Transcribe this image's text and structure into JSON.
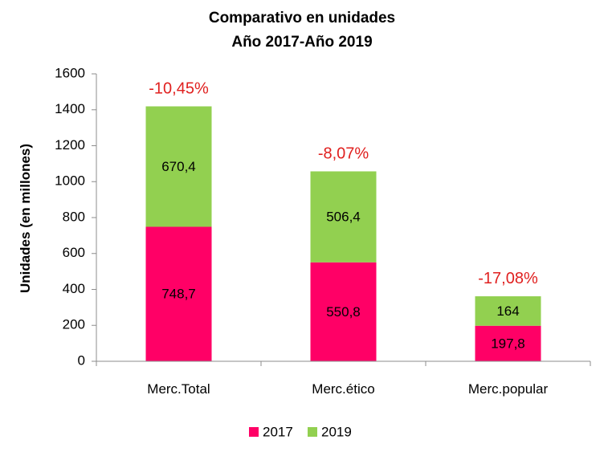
{
  "chart_data": {
    "type": "bar",
    "stacked": true,
    "title": [
      "Comparativo en unidades",
      "Año 2017-Año 2019"
    ],
    "xlabel": "",
    "ylabel": "Unidades (en millones)",
    "ylim": [
      0,
      1600
    ],
    "yticks": [
      0,
      200,
      400,
      600,
      800,
      1000,
      1200,
      1400,
      1600
    ],
    "grid": false,
    "legend_position": "bottom",
    "categories": [
      "Merc.Total",
      "Merc.ético",
      "Merc.popular"
    ],
    "series": [
      {
        "name": "2017",
        "color": "#ff0066",
        "values": [
          748.7,
          550.8,
          197.8
        ],
        "labels": [
          "748,7",
          "550,8",
          "197,8"
        ]
      },
      {
        "name": "2019",
        "color": "#92d050",
        "values": [
          670.4,
          506.4,
          164
        ],
        "labels": [
          "670,4",
          "506,4",
          "164"
        ]
      }
    ],
    "annotations": [
      "-10,45%",
      "-8,07%",
      "-17,08%"
    ],
    "annotation_color": "#e0201f"
  }
}
